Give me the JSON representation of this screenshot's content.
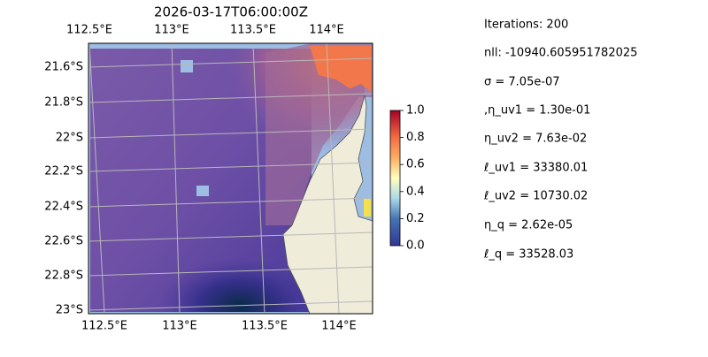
{
  "title": "2026-03-17T06:00:00Z",
  "map": {
    "lon_labels_top": [
      "112.5°E",
      "113°E",
      "113.5°E",
      "114°E"
    ],
    "lon_labels_bottom": [
      "112.5°E",
      "113°E",
      "113.5°E",
      "114°E"
    ],
    "lat_labels": [
      "21.6°S",
      "21.8°S",
      "22°S",
      "22.2°S",
      "22.4°S",
      "22.6°S",
      "22.8°S",
      "23°S"
    ]
  },
  "colorbar": {
    "lim": [
      0,
      1
    ],
    "ticks": [
      {
        "value": 0,
        "label": "0.0"
      },
      {
        "value": 0.2,
        "label": "0.2"
      },
      {
        "value": 0.4,
        "label": "0.4"
      },
      {
        "value": 0.6,
        "label": "0.6"
      },
      {
        "value": 0.8,
        "label": "0.8"
      },
      {
        "value": 1,
        "label": "1.0"
      }
    ]
  },
  "params": [
    "Iterations: 200",
    "nll: -10940.605951782025",
    "σ = 7.05e-07",
    ",η_uv1 = 1.30e-01",
    "η_uv2 = 7.63e-02",
    "ℓ_uv1 = 33380.01",
    "ℓ_uv2 = 10730.02",
    "η_q = 2.62e-05",
    "ℓ_q = 33528.03"
  ]
}
